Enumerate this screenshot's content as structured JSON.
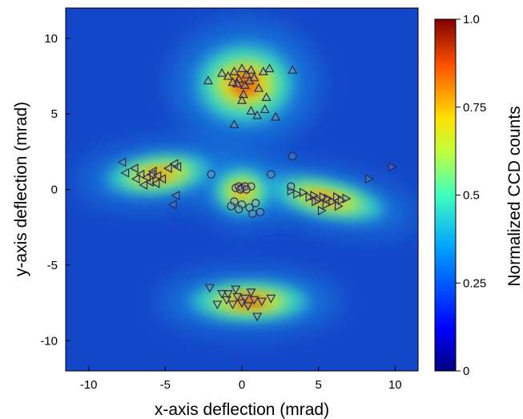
{
  "chart_data": {
    "type": "heatmap",
    "xlabel": "x-axis deflection (mrad)",
    "ylabel": "y-axis deflection (mrad)",
    "xlim": [
      -11.5,
      11.5
    ],
    "ylim": [
      -12,
      12
    ],
    "x_ticks": [
      -10,
      -5,
      0,
      5,
      10
    ],
    "y_ticks": [
      -10,
      -5,
      0,
      5,
      10
    ],
    "grid": false,
    "colorbar": {
      "label": "Normalized CCD counts",
      "range": [
        0,
        1
      ],
      "ticks": [
        0,
        0.25,
        0.5,
        0.75,
        1
      ],
      "tick_labels": [
        "0",
        "0.25",
        "0.5",
        "0.75",
        "1.0"
      ],
      "colormap": "jet"
    },
    "intensity_lobes": [
      {
        "name": "top",
        "x": 0.2,
        "y": 7.4,
        "peak": 1.0
      },
      {
        "name": "bottom",
        "x": 0.5,
        "y": -7.4,
        "peak": 1.0
      },
      {
        "name": "left",
        "x": -5.6,
        "y": 1.0,
        "peak": 0.85
      },
      {
        "name": "right",
        "x": 5.8,
        "y": -0.6,
        "peak": 0.85
      },
      {
        "name": "center",
        "x": 0.0,
        "y": 0.1,
        "peak": 0.8
      }
    ],
    "series": [
      {
        "marker": "triangle-up",
        "points": [
          [
            -2.2,
            7.2
          ],
          [
            -1.3,
            7.7
          ],
          [
            -0.9,
            7.5
          ],
          [
            -0.5,
            7.8
          ],
          [
            -0.2,
            7.3
          ],
          [
            0.0,
            8.0
          ],
          [
            0.3,
            7.6
          ],
          [
            0.6,
            7.9
          ],
          [
            0.8,
            7.4
          ],
          [
            -0.3,
            7.0
          ],
          [
            0.2,
            6.9
          ],
          [
            0.5,
            7.2
          ],
          [
            -0.6,
            7.1
          ],
          [
            0.1,
            6.3
          ],
          [
            0.0,
            5.9
          ],
          [
            1.1,
            6.7
          ],
          [
            1.4,
            7.8
          ],
          [
            1.8,
            8.0
          ],
          [
            3.3,
            7.9
          ],
          [
            1.6,
            6.1
          ],
          [
            1.5,
            5.3
          ],
          [
            0.6,
            5.2
          ],
          [
            1.0,
            4.9
          ],
          [
            2.2,
            4.8
          ],
          [
            -0.5,
            4.3
          ]
        ]
      },
      {
        "marker": "triangle-down",
        "points": [
          [
            -2.1,
            -6.5
          ],
          [
            -1.3,
            -6.9
          ],
          [
            -1.0,
            -7.3
          ],
          [
            -0.6,
            -7.6
          ],
          [
            -0.3,
            -7.1
          ],
          [
            0.0,
            -7.5
          ],
          [
            0.4,
            -7.7
          ],
          [
            0.8,
            -7.3
          ],
          [
            1.3,
            -7.4
          ],
          [
            1.9,
            -7.2
          ],
          [
            -1.6,
            -7.6
          ],
          [
            1.0,
            -8.4
          ],
          [
            0.2,
            -7.2
          ],
          [
            -0.9,
            -6.9
          ],
          [
            0.6,
            -6.8
          ],
          [
            -0.4,
            -6.6
          ]
        ]
      },
      {
        "marker": "triangle-left",
        "points": [
          [
            -7.8,
            1.8
          ],
          [
            -7.6,
            1.1
          ],
          [
            -7.0,
            1.4
          ],
          [
            -6.6,
            1.0
          ],
          [
            -6.2,
            0.8
          ],
          [
            -5.8,
            1.2
          ],
          [
            -5.5,
            0.9
          ],
          [
            -5.2,
            0.7
          ],
          [
            -6.0,
            0.5
          ],
          [
            -6.4,
            0.3
          ],
          [
            -5.6,
            0.4
          ],
          [
            -4.8,
            1.4
          ],
          [
            -4.4,
            1.7
          ],
          [
            -4.2,
            1.5
          ],
          [
            -4.3,
            -0.4
          ],
          [
            -4.5,
            -1.0
          ],
          [
            -5.9,
            1.0
          ],
          [
            -6.9,
            0.7
          ]
        ]
      },
      {
        "marker": "triangle-right",
        "points": [
          [
            3.2,
            -0.1
          ],
          [
            3.6,
            -0.3
          ],
          [
            4.0,
            -0.2
          ],
          [
            4.4,
            -0.5
          ],
          [
            4.7,
            -0.4
          ],
          [
            5.0,
            -0.7
          ],
          [
            5.3,
            -0.5
          ],
          [
            5.6,
            -0.6
          ],
          [
            5.9,
            -0.8
          ],
          [
            6.2,
            -0.5
          ],
          [
            6.5,
            -0.7
          ],
          [
            6.8,
            -0.6
          ],
          [
            5.5,
            -1.0
          ],
          [
            5.2,
            -1.4
          ],
          [
            6.3,
            -1.1
          ],
          [
            8.3,
            0.7
          ],
          [
            9.8,
            1.5
          ],
          [
            4.8,
            -0.8
          ]
        ]
      },
      {
        "marker": "circle",
        "points": [
          [
            -0.4,
            0.1
          ],
          [
            -0.2,
            0.2
          ],
          [
            0.0,
            0.1
          ],
          [
            0.2,
            0.2
          ],
          [
            0.6,
            0.2
          ],
          [
            -0.1,
            0.0
          ],
          [
            0.3,
            0.0
          ],
          [
            -2.0,
            1.0
          ],
          [
            1.9,
            1.0
          ],
          [
            3.3,
            2.2
          ],
          [
            3.2,
            0.2
          ],
          [
            -0.5,
            -0.8
          ],
          [
            0.0,
            -1.0
          ],
          [
            -0.2,
            -1.3
          ],
          [
            0.5,
            -1.2
          ],
          [
            0.7,
            -1.6
          ],
          [
            1.2,
            -1.5
          ],
          [
            0.9,
            -0.9
          ],
          [
            -0.7,
            -1.1
          ]
        ]
      }
    ]
  }
}
